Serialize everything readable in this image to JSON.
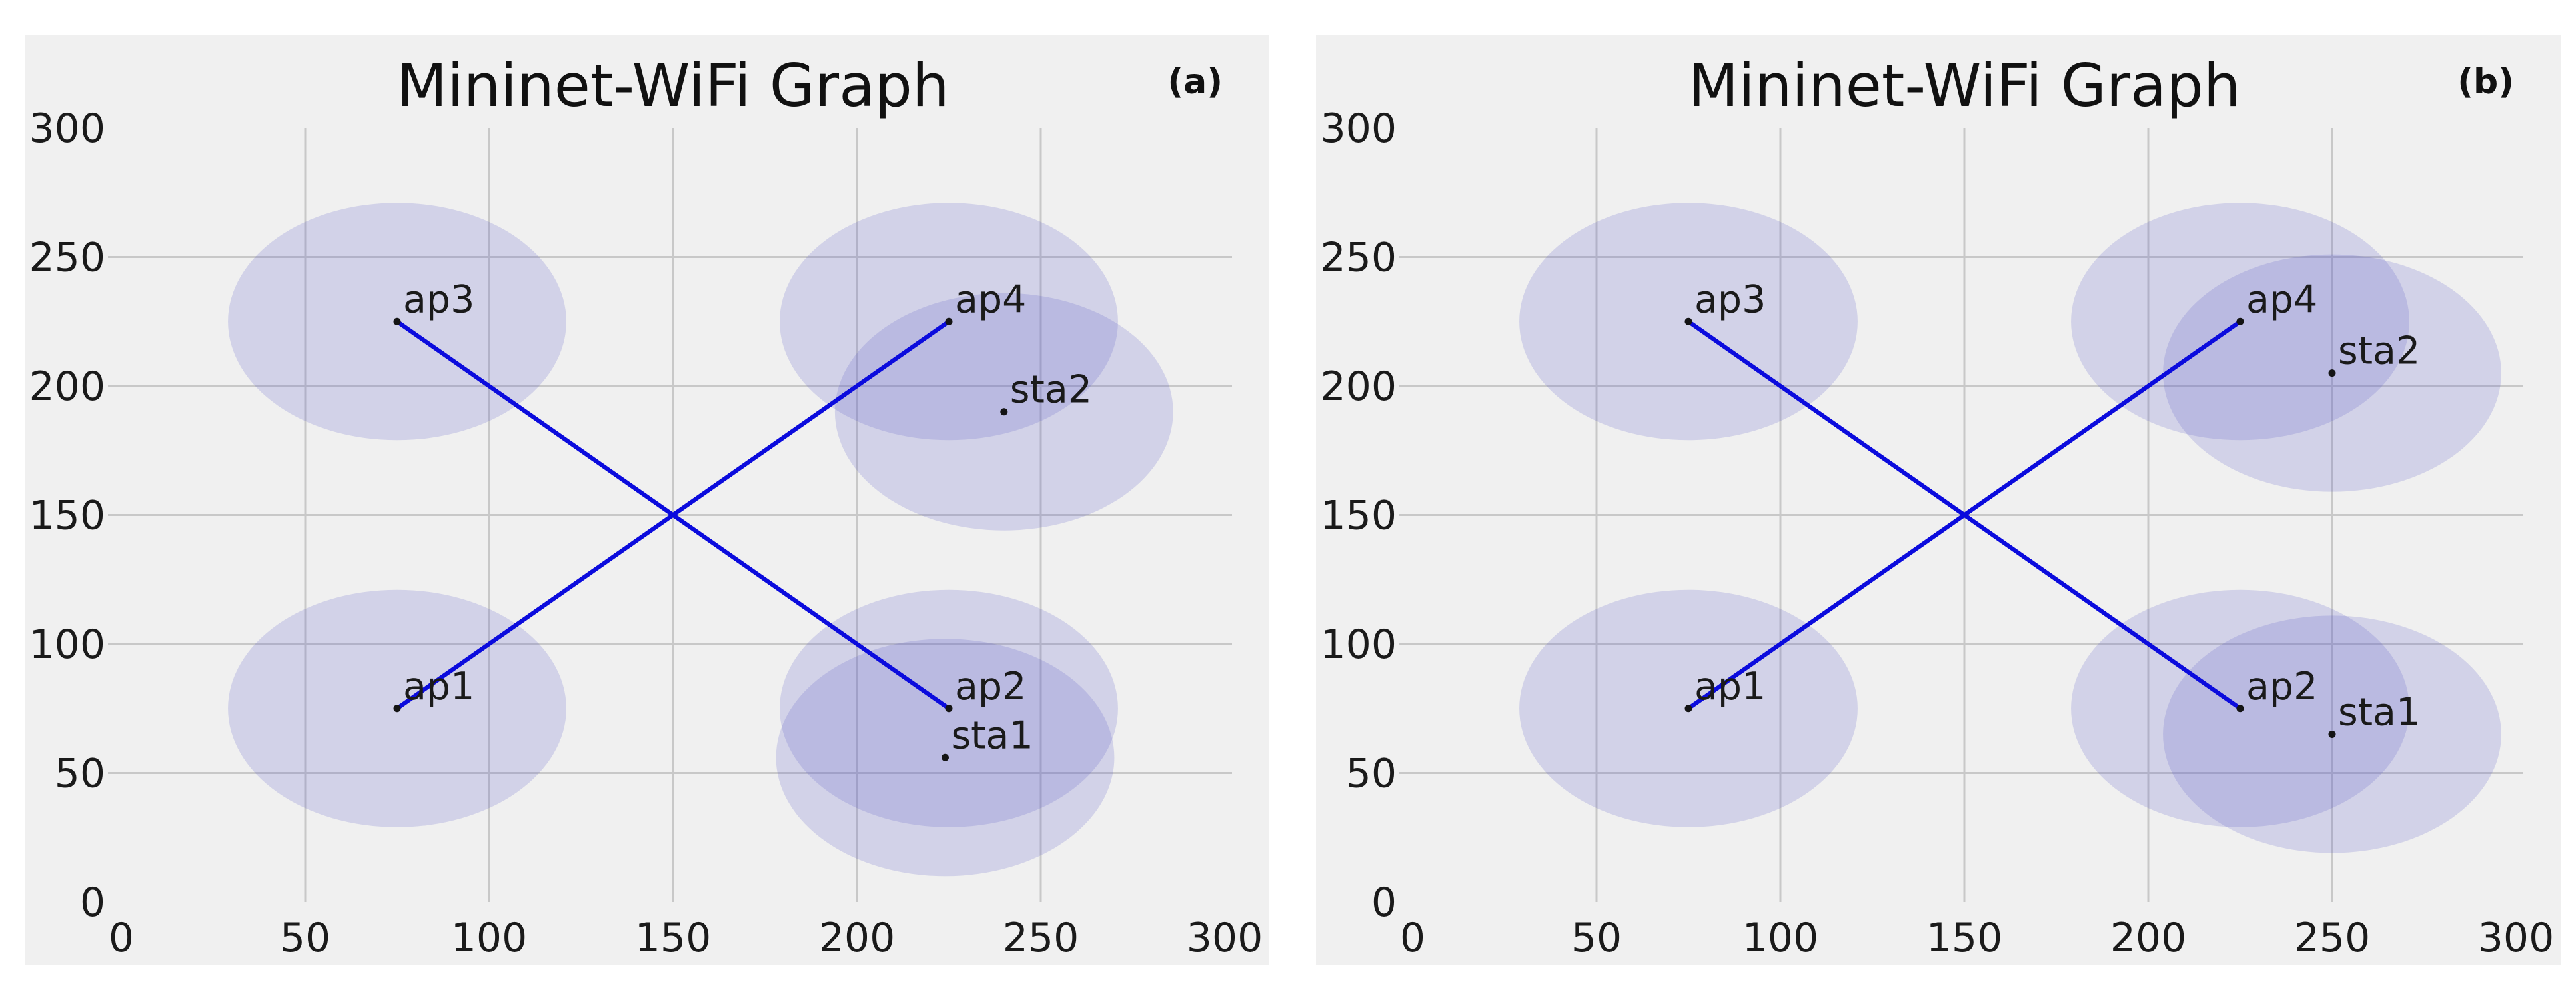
{
  "style": {
    "page_bg": "#ffffff",
    "panel_bg": "#f0f0f0",
    "grid_color": "#c8c8c8",
    "range_fill": "#5a5ac8",
    "range_opacity": 0.2,
    "link_color": "#0b0bdd",
    "dot_color": "#141414",
    "text_color": "#1a1a1a"
  },
  "axes": {
    "xticks": [
      0,
      50,
      100,
      150,
      200,
      250,
      300
    ],
    "yticks": [
      0,
      50,
      100,
      150,
      200,
      250,
      300
    ],
    "grid_ticks": [
      50,
      100,
      150,
      200,
      250
    ]
  },
  "chart_data": [
    {
      "type": "scatter",
      "panel_label": "(a)",
      "title": "Mininet-WiFi Graph",
      "xlabel": "",
      "ylabel": "",
      "xlim": [
        0,
        300
      ],
      "ylim": [
        0,
        300
      ],
      "grid": true,
      "legend": false,
      "points": [
        {
          "label": "ap1",
          "kind": "access-point",
          "x": 75,
          "y": 75,
          "range_radius": 46
        },
        {
          "label": "ap2",
          "kind": "access-point",
          "x": 225,
          "y": 75,
          "range_radius": 46
        },
        {
          "label": "ap3",
          "kind": "access-point",
          "x": 75,
          "y": 225,
          "range_radius": 46
        },
        {
          "label": "ap4",
          "kind": "access-point",
          "x": 225,
          "y": 225,
          "range_radius": 46
        },
        {
          "label": "sta1",
          "kind": "station",
          "x": 224,
          "y": 56,
          "range_radius": 46
        },
        {
          "label": "sta2",
          "kind": "station",
          "x": 240,
          "y": 190,
          "range_radius": 46
        }
      ],
      "links": [
        {
          "from": "ap3",
          "to": "ap2"
        },
        {
          "from": "ap1",
          "to": "ap4"
        }
      ]
    },
    {
      "type": "scatter",
      "panel_label": "(b)",
      "title": "Mininet-WiFi Graph",
      "xlabel": "",
      "ylabel": "",
      "xlim": [
        0,
        300
      ],
      "ylim": [
        0,
        300
      ],
      "grid": true,
      "legend": false,
      "points": [
        {
          "label": "ap1",
          "kind": "access-point",
          "x": 75,
          "y": 75,
          "range_radius": 46
        },
        {
          "label": "ap2",
          "kind": "access-point",
          "x": 225,
          "y": 75,
          "range_radius": 46
        },
        {
          "label": "ap3",
          "kind": "access-point",
          "x": 75,
          "y": 225,
          "range_radius": 46
        },
        {
          "label": "ap4",
          "kind": "access-point",
          "x": 225,
          "y": 225,
          "range_radius": 46
        },
        {
          "label": "sta1",
          "kind": "station",
          "x": 250,
          "y": 65,
          "range_radius": 46
        },
        {
          "label": "sta2",
          "kind": "station",
          "x": 250,
          "y": 205,
          "range_radius": 46
        }
      ],
      "links": [
        {
          "from": "ap3",
          "to": "ap2"
        },
        {
          "from": "ap1",
          "to": "ap4"
        }
      ]
    }
  ]
}
